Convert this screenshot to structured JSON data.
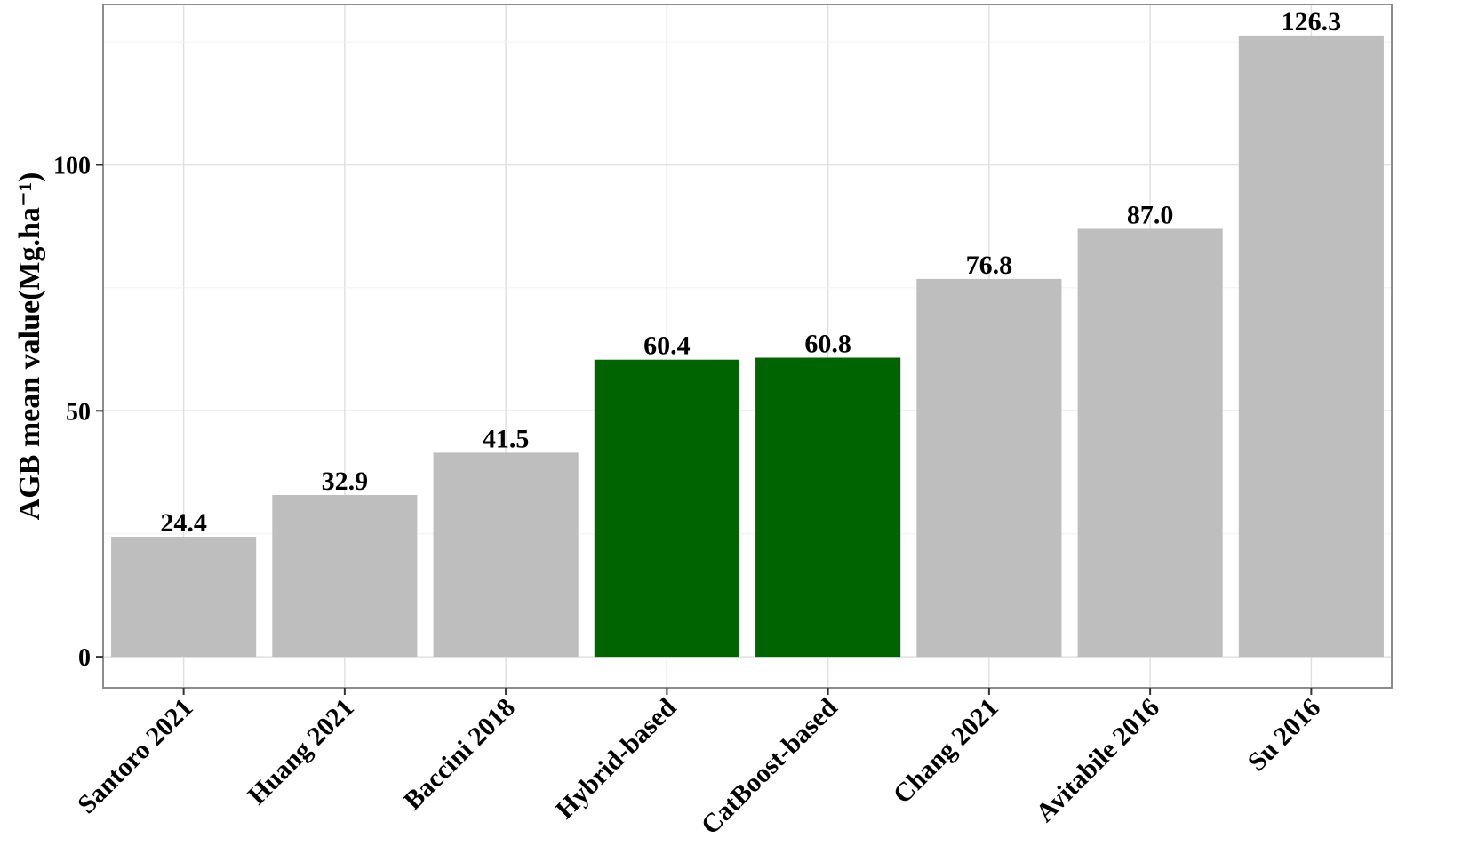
{
  "chart_data": {
    "type": "bar",
    "categories": [
      "Santoro 2021",
      "Huang 2021",
      "Baccini 2018",
      "Hybrid-based",
      "CatBoost-based",
      "Chang 2021",
      "Avitabile 2016",
      "Su 2016"
    ],
    "values": [
      24.4,
      32.9,
      41.5,
      60.4,
      60.8,
      76.8,
      87.0,
      126.3
    ],
    "value_labels": [
      "24.4",
      "32.9",
      "41.5",
      "60.4",
      "60.8",
      "76.8",
      "87.0",
      "126.3"
    ],
    "bar_colors": [
      "#bebebe",
      "#bebebe",
      "#bebebe",
      "#006400",
      "#006400",
      "#bebebe",
      "#bebebe",
      "#bebebe"
    ],
    "title": "",
    "xlabel": "",
    "ylabel": "AGB mean value(Mg.ha⁻¹)",
    "ylim": [
      -6.3,
      132.6
    ],
    "yticks": [
      0,
      50,
      100
    ],
    "ytick_labels": [
      "0",
      "50",
      "100"
    ],
    "grid": true,
    "legend": "none",
    "x_label_rotation": -45,
    "colors": {
      "background": "#ffffff",
      "grid_major": "#e0e0e0",
      "grid_minor": "#f0f0f0",
      "panel_border": "#8c8c8c",
      "gray_bar": "#bebebe",
      "highlight_bar": "#006400"
    }
  }
}
